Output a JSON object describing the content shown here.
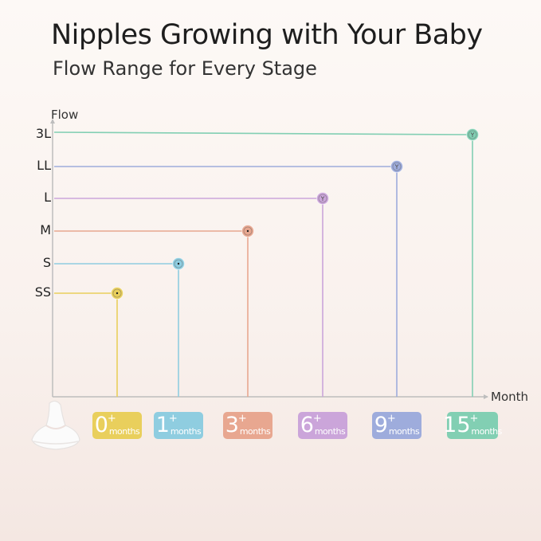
{
  "header": {
    "title": "Nipples Growing with Your Baby",
    "subtitle": "Flow Range for Every Stage"
  },
  "chart_data": {
    "type": "step-line",
    "title": "Nipples Growing with Your Baby",
    "subtitle": "Flow Range for Every Stage",
    "ylabel": "Flow",
    "xlabel": "Month",
    "y_categories": [
      "SS",
      "S",
      "M",
      "L",
      "LL",
      "3L"
    ],
    "x_categories": [
      "0",
      "1",
      "3",
      "6",
      "9",
      "15"
    ],
    "grid": false,
    "series": [
      {
        "flow": "SS",
        "month": "0",
        "badge_plus": "+",
        "badge_unit": "months",
        "color": "#e9cf5c",
        "hole": "dot"
      },
      {
        "flow": "S",
        "month": "1",
        "badge_plus": "+",
        "badge_unit": "months",
        "color": "#8fcde0",
        "hole": "dot"
      },
      {
        "flow": "M",
        "month": "3",
        "badge_plus": "+",
        "badge_unit": "months",
        "color": "#e8a790",
        "hole": "dot"
      },
      {
        "flow": "L",
        "month": "6",
        "badge_plus": "+",
        "badge_unit": "months",
        "color": "#cba5da",
        "hole": "Y"
      },
      {
        "flow": "LL",
        "month": "9",
        "badge_plus": "+",
        "badge_unit": "months",
        "color": "#9eacdc",
        "hole": "Y"
      },
      {
        "flow": "3L",
        "month": "15",
        "badge_plus": "+",
        "badge_unit": "months",
        "color": "#82cfb3",
        "hole": "Y"
      }
    ]
  }
}
